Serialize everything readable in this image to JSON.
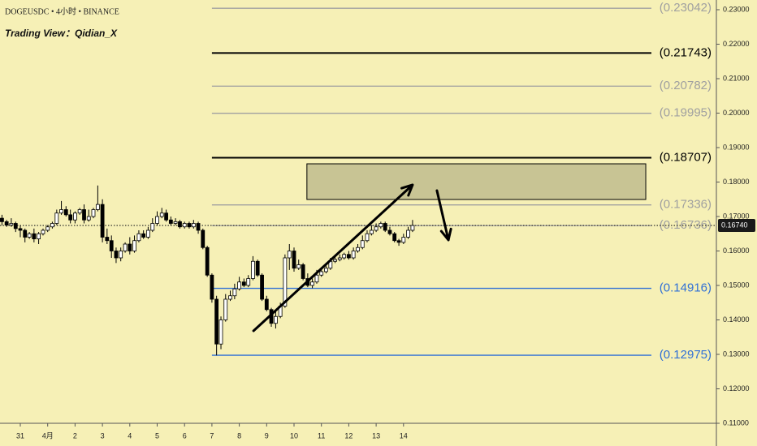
{
  "chart_data": {
    "type": "candlestick",
    "title": "DOGEUSDC • 4小时 • BINANCE",
    "subtitle": "Trading View：Qidian_X",
    "up_color": "#ffffff",
    "down_color": "#000000",
    "outline_color": "#000000",
    "xlim": [
      -0.742,
      25.43
    ],
    "ylim": [
      0.11,
      0.23282
    ],
    "xticks": [
      {
        "value": 0,
        "label": "31"
      },
      {
        "value": 1,
        "label": "4月"
      },
      2,
      3,
      4,
      5,
      6,
      7,
      8,
      9,
      10,
      11,
      12,
      13,
      14
    ],
    "yticks": [
      {
        "value": 0.11,
        "label": "0.11000"
      },
      {
        "value": 0.12,
        "label": "0.12000"
      },
      {
        "value": 0.13,
        "label": "0.13000"
      },
      {
        "value": 0.14,
        "label": "0.14000"
      },
      {
        "value": 0.15,
        "label": "0.15000"
      },
      {
        "value": 0.16,
        "label": "0.16000"
      },
      {
        "value": 0.17,
        "label": "0.17000"
      },
      {
        "value": 0.18,
        "label": "0.18000"
      },
      {
        "value": 0.19,
        "label": "0.19000"
      },
      {
        "value": 0.2,
        "label": "0.20000"
      },
      {
        "value": 0.21,
        "label": "0.21000"
      },
      {
        "value": 0.22,
        "label": "0.22000"
      },
      {
        "value": 0.23,
        "label": "0.23000"
      }
    ],
    "x": [
      -0.67,
      -0.5,
      -0.33,
      -0.17,
      0,
      0.17,
      0.33,
      0.5,
      0.67,
      0.83,
      1,
      1.17,
      1.33,
      1.5,
      1.67,
      1.83,
      2,
      2.17,
      2.33,
      2.5,
      2.67,
      2.83,
      3,
      3.17,
      3.33,
      3.5,
      3.67,
      3.83,
      4,
      4.17,
      4.33,
      4.5,
      4.67,
      4.83,
      5,
      5.17,
      5.33,
      5.5,
      5.67,
      5.83,
      6,
      6.17,
      6.33,
      6.5,
      6.67,
      6.83,
      7,
      7.17,
      7.33,
      7.5,
      7.67,
      7.83,
      8,
      8.17,
      8.33,
      8.5,
      8.67,
      8.83,
      9,
      9.17,
      9.33,
      9.5,
      9.67,
      9.83,
      10,
      10.17,
      10.33,
      10.5,
      10.67,
      10.83,
      11,
      11.17,
      11.33,
      11.5,
      11.67,
      11.83,
      12,
      12.17,
      12.33,
      12.5,
      12.67,
      12.83,
      13,
      13.17,
      13.33,
      13.5,
      13.67,
      13.83,
      14,
      14.17,
      14.33
    ],
    "open": [
      0.1695,
      0.1685,
      0.1675,
      0.168,
      0.1665,
      0.166,
      0.164,
      0.165,
      0.1635,
      0.165,
      0.166,
      0.167,
      0.168,
      0.171,
      0.172,
      0.1705,
      0.169,
      0.171,
      0.172,
      0.169,
      0.17,
      0.172,
      0.1735,
      0.164,
      0.163,
      0.16,
      0.158,
      0.16,
      0.162,
      0.16,
      0.163,
      0.165,
      0.164,
      0.166,
      0.168,
      0.17,
      0.171,
      0.169,
      0.168,
      0.1685,
      0.167,
      0.168,
      0.167,
      0.168,
      0.166,
      0.161,
      0.153,
      0.146,
      0.133,
      0.14,
      0.146,
      0.147,
      0.149,
      0.151,
      0.15,
      0.152,
      0.157,
      0.153,
      0.146,
      0.143,
      0.139,
      0.141,
      0.144,
      0.158,
      0.16,
      0.155,
      0.156,
      0.152,
      0.15,
      0.151,
      0.153,
      0.154,
      0.155,
      0.157,
      0.1575,
      0.158,
      0.159,
      0.158,
      0.16,
      0.161,
      0.163,
      0.165,
      0.166,
      0.167,
      0.168,
      0.166,
      0.165,
      0.163,
      0.1625,
      0.164,
      0.166
    ],
    "high": [
      0.1705,
      0.169,
      0.1695,
      0.1685,
      0.1675,
      0.1665,
      0.1655,
      0.1665,
      0.1655,
      0.1665,
      0.1675,
      0.1685,
      0.172,
      0.1745,
      0.173,
      0.172,
      0.1715,
      0.1725,
      0.1735,
      0.172,
      0.1725,
      0.179,
      0.175,
      0.1665,
      0.1645,
      0.161,
      0.161,
      0.1625,
      0.164,
      0.1645,
      0.166,
      0.166,
      0.167,
      0.1695,
      0.1715,
      0.1725,
      0.172,
      0.17,
      0.1695,
      0.169,
      0.1685,
      0.1685,
      0.169,
      0.1685,
      0.1665,
      0.1615,
      0.1535,
      0.147,
      0.141,
      0.1475,
      0.1485,
      0.1505,
      0.1525,
      0.152,
      0.153,
      0.1585,
      0.1575,
      0.1535,
      0.147,
      0.1435,
      0.1425,
      0.145,
      0.159,
      0.162,
      0.161,
      0.1575,
      0.1565,
      0.1535,
      0.152,
      0.1545,
      0.155,
      0.1565,
      0.158,
      0.1585,
      0.159,
      0.1595,
      0.16,
      0.161,
      0.162,
      0.1645,
      0.166,
      0.1675,
      0.168,
      0.1685,
      0.1685,
      0.167,
      0.1655,
      0.1635,
      0.165,
      0.167,
      0.169
    ],
    "low": [
      0.1675,
      0.167,
      0.167,
      0.1655,
      0.164,
      0.1625,
      0.1635,
      0.1625,
      0.162,
      0.1645,
      0.1655,
      0.1665,
      0.1675,
      0.1705,
      0.17,
      0.168,
      0.168,
      0.1705,
      0.168,
      0.1685,
      0.1695,
      0.1715,
      0.1625,
      0.162,
      0.158,
      0.1565,
      0.157,
      0.1595,
      0.159,
      0.1595,
      0.1625,
      0.1635,
      0.1635,
      0.1655,
      0.1675,
      0.1695,
      0.1685,
      0.1675,
      0.1675,
      0.1665,
      0.1665,
      0.1665,
      0.1665,
      0.165,
      0.1605,
      0.1525,
      0.145,
      0.1297,
      0.1315,
      0.1395,
      0.1455,
      0.146,
      0.1485,
      0.1495,
      0.1495,
      0.1515,
      0.1525,
      0.1455,
      0.1425,
      0.138,
      0.1375,
      0.1405,
      0.1435,
      0.1545,
      0.154,
      0.1545,
      0.1515,
      0.1495,
      0.1492,
      0.1505,
      0.1525,
      0.1535,
      0.1545,
      0.1565,
      0.157,
      0.1575,
      0.1575,
      0.1575,
      0.1595,
      0.1605,
      0.1625,
      0.1645,
      0.1655,
      0.1665,
      0.1655,
      0.1645,
      0.1625,
      0.1615,
      0.162,
      0.1635,
      0.1655
    ],
    "close": [
      0.1685,
      0.1675,
      0.168,
      0.1665,
      0.166,
      0.164,
      0.165,
      0.1635,
      0.165,
      0.166,
      0.167,
      0.168,
      0.171,
      0.172,
      0.1705,
      0.169,
      0.171,
      0.172,
      0.169,
      0.17,
      0.172,
      0.1735,
      0.164,
      0.163,
      0.16,
      0.158,
      0.16,
      0.162,
      0.16,
      0.163,
      0.165,
      0.164,
      0.166,
      0.168,
      0.17,
      0.171,
      0.169,
      0.168,
      0.1685,
      0.167,
      0.168,
      0.167,
      0.168,
      0.166,
      0.161,
      0.153,
      0.146,
      0.133,
      0.14,
      0.146,
      0.147,
      0.149,
      0.151,
      0.15,
      0.152,
      0.157,
      0.153,
      0.146,
      0.143,
      0.139,
      0.141,
      0.144,
      0.158,
      0.16,
      0.155,
      0.156,
      0.152,
      0.15,
      0.151,
      0.153,
      0.154,
      0.155,
      0.157,
      0.1575,
      0.158,
      0.159,
      0.158,
      0.16,
      0.161,
      0.163,
      0.165,
      0.166,
      0.167,
      0.168,
      0.166,
      0.165,
      0.163,
      0.1625,
      0.164,
      0.166,
      0.1674
    ],
    "levels": [
      {
        "value": 0.23042,
        "label": "(0.23042)",
        "color": "#a0a0a0",
        "start": 7
      },
      {
        "value": 0.21743,
        "label": "(0.21743)",
        "color": "#000000",
        "start": 7
      },
      {
        "value": 0.20782,
        "label": "(0.20782)",
        "color": "#a0a0a0",
        "start": 7
      },
      {
        "value": 0.19995,
        "label": "(0.19995)",
        "color": "#a0a0a0",
        "start": 7
      },
      {
        "value": 0.18707,
        "label": "(0.18707)",
        "color": "#000000",
        "start": 7
      },
      {
        "value": 0.17336,
        "label": "(0.17336)",
        "color": "#a0a0a0",
        "start": 7
      },
      {
        "value": 0.16736,
        "label": "(0.16736)",
        "color": "#a0a0a0",
        "start": 7
      },
      {
        "value": 0.14916,
        "label": "(0.14916)",
        "color": "#2f6fd6",
        "start": 7
      },
      {
        "value": 0.12975,
        "label": "(0.12975)",
        "color": "#2f6fd6",
        "start": 7
      }
    ],
    "last_price": {
      "value": 0.1674,
      "label": "0.16740"
    },
    "zone": {
      "x": [
        10.47,
        22.85
      ],
      "y": [
        0.17494,
        0.18529
      ],
      "color": "#c8c494"
    },
    "arrows": [
      {
        "x": [
          8.52,
          14.33
        ],
        "y": [
          0.13682,
          0.17918
        ]
      },
      {
        "x": [
          15.22,
          15.64
        ],
        "y": [
          0.17753,
          0.16318
        ]
      }
    ]
  }
}
